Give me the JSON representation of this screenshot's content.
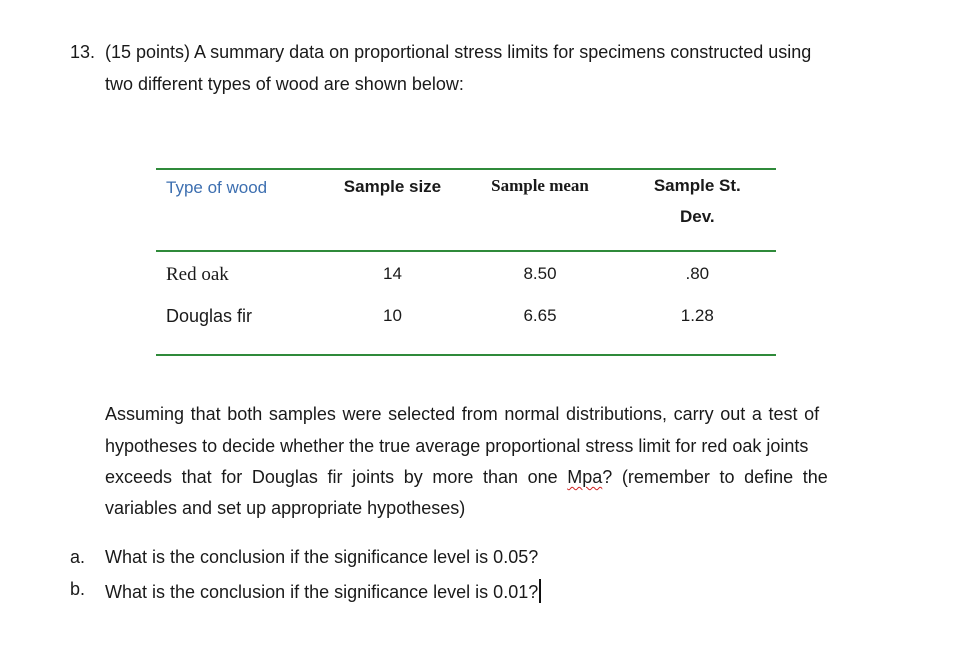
{
  "question": {
    "number": "13.",
    "line1": "(15 points) A summary data on proportional stress limits for specimens constructed using",
    "line2": "two different types of wood are shown below:"
  },
  "table": {
    "headers": {
      "type": "Type of wood",
      "size": "Sample size",
      "mean": "Sample mean",
      "sd_line1": "Sample St.",
      "sd_line2": "Dev."
    },
    "rows": [
      {
        "type": "Red oak",
        "size": "14",
        "mean": "8.50",
        "sd": ".80"
      },
      {
        "type": "Douglas fir",
        "size": "10",
        "mean": "6.65",
        "sd": "1.28"
      }
    ],
    "rule_color": "#2f8a3a",
    "header_type_color": "#3d6fb0"
  },
  "paragraph": {
    "line1": "Assuming that both samples were selected from normal distributions, carry out a test of",
    "line2": "hypotheses to decide whether the true average proportional stress limit for red oak joints",
    "line3_before": "exceeds that for Douglas fir joints by more than one",
    "line3_mpa": "Mpa",
    "line3_after": "? (remember to define the",
    "line4": "variables and set up appropriate hypotheses)"
  },
  "items": [
    {
      "marker": "a.",
      "text": "What is the conclusion if the significance level is 0.05?"
    },
    {
      "marker": "b.",
      "text": "What is the conclusion if the significance level is 0.01?"
    }
  ]
}
